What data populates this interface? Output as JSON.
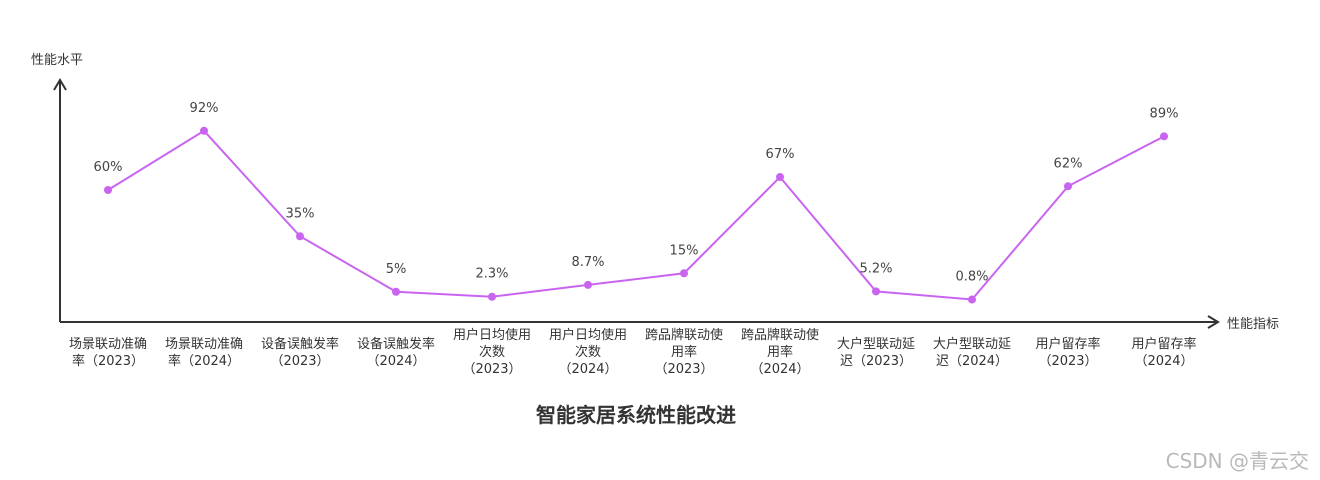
{
  "chart_data": {
    "type": "line",
    "title": "智能家居系统性能改进",
    "xlabel": "性能指标",
    "ylabel": "性能水平",
    "ylim": [
      0,
      100
    ],
    "grid": false,
    "legend": "none",
    "line_color": "#c964f0",
    "categories": [
      [
        "场景联动准确",
        "率（2023）"
      ],
      [
        "场景联动准确",
        "率（2024）"
      ],
      [
        "设备误触发率",
        "（2023）"
      ],
      [
        "设备误触发率",
        "（2024）"
      ],
      [
        "用户日均使用",
        "次数",
        "（2023）"
      ],
      [
        "用户日均使用",
        "次数",
        "（2024）"
      ],
      [
        "跨品牌联动使",
        "用率",
        "（2023）"
      ],
      [
        "跨品牌联动使",
        "用率",
        "（2024）"
      ],
      [
        "大户型联动延",
        "迟（2023）"
      ],
      [
        "大户型联动延",
        "迟（2024）"
      ],
      [
        "用户留存率",
        "（2023）"
      ],
      [
        "用户留存率",
        "（2024）"
      ]
    ],
    "values": [
      60,
      92,
      35,
      5,
      2.3,
      8.7,
      15,
      67,
      5.2,
      0.8,
      62,
      89
    ],
    "data_labels": [
      "60%",
      "92%",
      "35%",
      "5%",
      "2.3%",
      "8.7%",
      "15%",
      "67%",
      "5.2%",
      "0.8%",
      "62%",
      "89%"
    ]
  },
  "watermark": "CSDN @青云交"
}
